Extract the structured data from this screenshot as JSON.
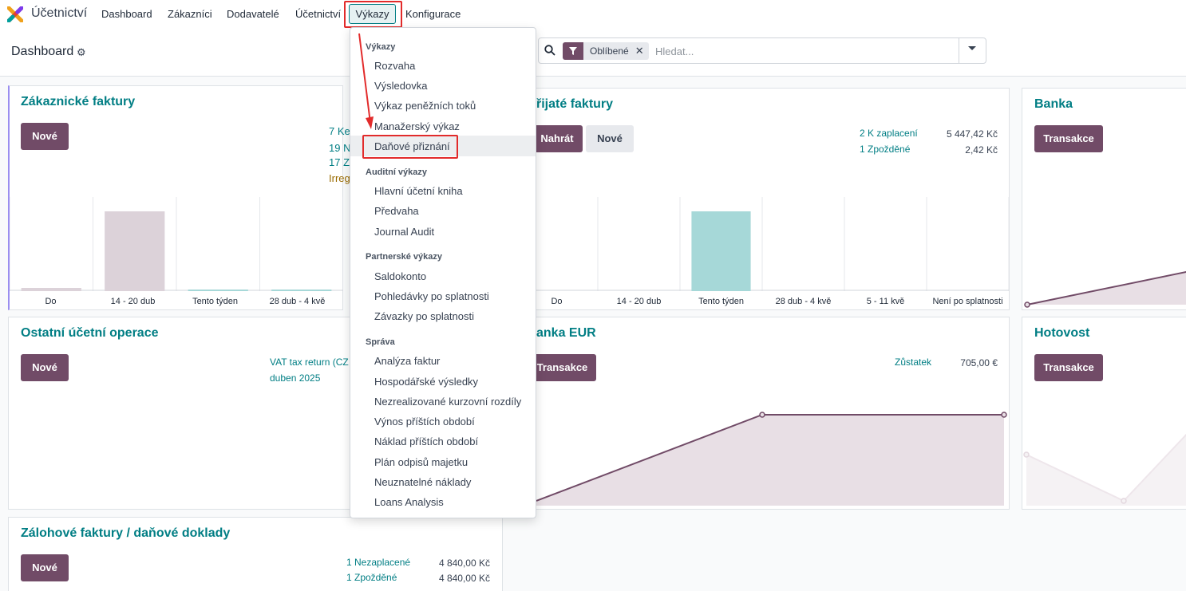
{
  "topbar": {
    "app_name": "Účetnictví",
    "nav": [
      "Dashboard",
      "Zákazníci",
      "Dodavatelé",
      "Účetnictví",
      "Výkazy",
      "Konfigurace"
    ],
    "logo_icon": "odoo-accounting-logo-icon"
  },
  "control_panel": {
    "title": "Dashboard",
    "facet_label": "Oblíbené",
    "search_placeholder": "Hledat..."
  },
  "colors": {
    "primary": "#714b67",
    "accent": "#017e84",
    "annotation": "#e22b2b",
    "bar_pink": "#dcd2d9",
    "bar_teal": "#a6d8d8"
  },
  "cards": {
    "customer_invoices": {
      "title": "Zákaznické faktury",
      "new_button": "Nové",
      "links": [
        "7 Ke",
        "19 N",
        "17 Z"
      ],
      "warning": "Irreg",
      "axis": [
        "Do",
        "14 - 20 dub",
        "Tento týden",
        "28 dub - 4 kvě"
      ]
    },
    "vendor_bills": {
      "title": "řijaté faktury",
      "upload_button": "Nahrát",
      "new_button": "Nové",
      "rows": [
        {
          "label": "2 K zaplacení",
          "amount": "5 447,42 Kč"
        },
        {
          "label": "1 Zpožděné",
          "amount": "2,42 Kč"
        }
      ],
      "axis": [
        "Do",
        "14 - 20 dub",
        "Tento týden",
        "28 dub - 4 kvě",
        "5 - 11 kvě",
        "Není po splatnosti"
      ]
    },
    "bank": {
      "title": "Banka",
      "button": "Transakce"
    },
    "misc": {
      "title": "Ostatní účetní operace",
      "new_button": "Nové",
      "lines": [
        "VAT tax return (CZ",
        "duben 2025"
      ]
    },
    "bank_eur": {
      "title": "anka EUR",
      "button": "Transakce",
      "balance_label": "Zůstatek",
      "balance_value": "705,00 €"
    },
    "cash": {
      "title": "Hotovost",
      "button": "Transakce"
    },
    "advance": {
      "title": "Zálohové faktury / daňové doklady",
      "new_button": "Nové",
      "rows": [
        {
          "label": "1 Nezaplacené",
          "amount": "4 840,00 Kč"
        },
        {
          "label": "1 Zpožděné",
          "amount": "4 840,00 Kč"
        }
      ]
    }
  },
  "chart_data": [
    {
      "type": "bar",
      "categories": [
        "Do",
        "14 - 20 dub",
        "Tento týden",
        "28 dub - 4 kvě"
      ],
      "values": [
        0.04,
        1.0,
        0.02,
        0.02
      ]
    },
    {
      "type": "bar",
      "categories": [
        "Do",
        "14 - 20 dub",
        "Tento týden",
        "28 dub - 4 kvě",
        "5 - 11 kvě",
        "Není po splatnosti"
      ],
      "values": [
        0,
        0,
        1.0,
        0,
        0,
        0
      ]
    }
  ],
  "dropdown": {
    "sections": [
      {
        "header": "Výkazy",
        "items": [
          "Rozvaha",
          "Výsledovka",
          "Výkaz peněžních toků",
          "Manažerský výkaz",
          "Daňové přiznání"
        ]
      },
      {
        "header": "Auditní výkazy",
        "items": [
          "Hlavní účetní kniha",
          "Předvaha",
          "Journal Audit"
        ]
      },
      {
        "header": "Partnerské výkazy",
        "items": [
          "Saldokonto",
          "Pohledávky po splatnosti",
          "Závazky po splatnosti"
        ]
      },
      {
        "header": "Správa",
        "items": [
          "Analýza faktur",
          "Hospodářské výsledky",
          "Nezrealizované kurzovní rozdíly",
          "Výnos příštích období",
          "Náklad příštích období",
          "Plán odpisů majetku",
          "Neuznatelné náklady",
          "Loans Analysis"
        ]
      }
    ]
  }
}
